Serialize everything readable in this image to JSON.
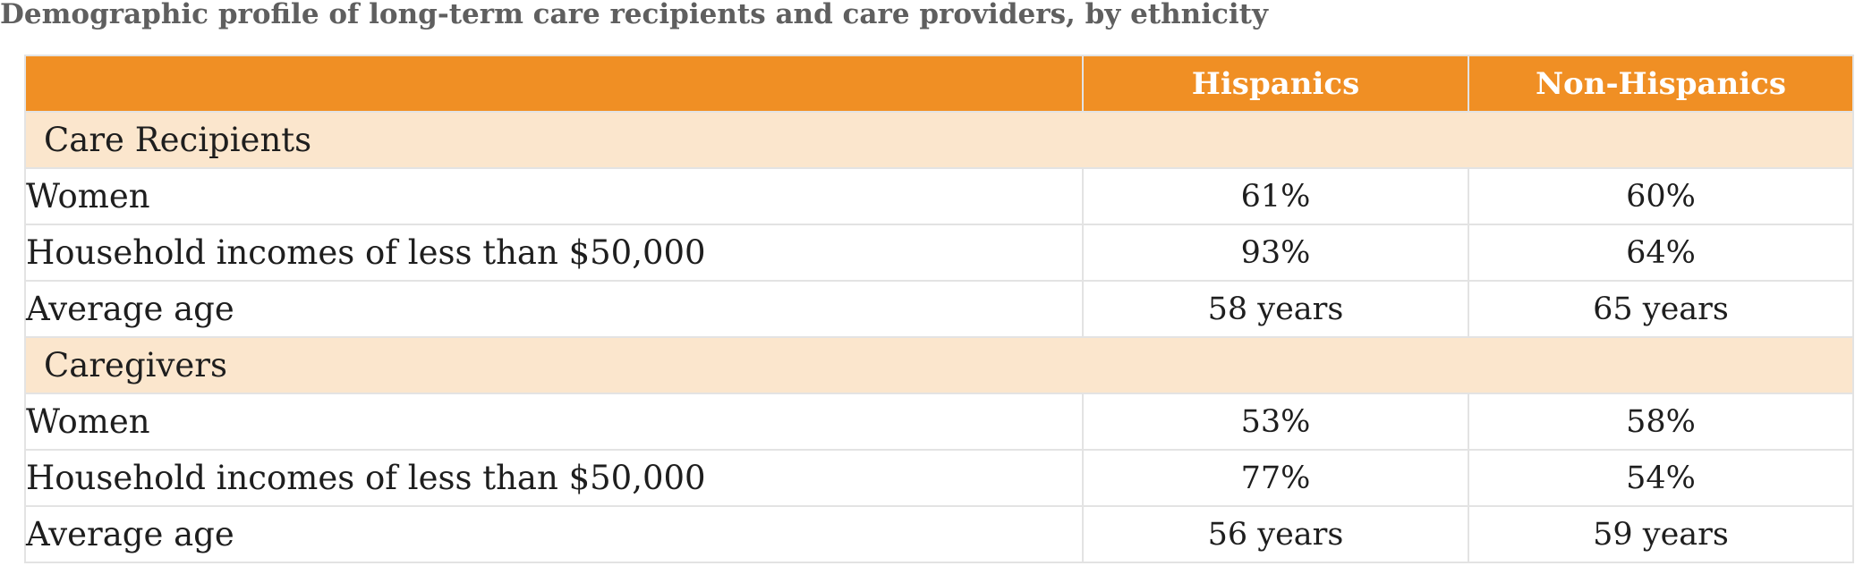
{
  "title": "Demographic profile of long-term care recipients and care providers, by ethnicity",
  "colors": {
    "header_bg": "#f08f24",
    "section_bg": "#fbe6cd",
    "title_text": "#5f5f5f"
  },
  "table": {
    "columns": [
      "",
      "Hispanics",
      "Non-Hispanics"
    ],
    "sections": [
      {
        "label": "Care Recipients",
        "rows": [
          {
            "label": "Women",
            "hispanics": "61%",
            "non_hispanics": "60%"
          },
          {
            "label": "Household incomes of less than $50,000",
            "hispanics": "93%",
            "non_hispanics": "64%"
          },
          {
            "label": "Average age",
            "hispanics": "58 years",
            "non_hispanics": "65 years"
          }
        ]
      },
      {
        "label": "Caregivers",
        "rows": [
          {
            "label": "Women",
            "hispanics": "53%",
            "non_hispanics": "58%"
          },
          {
            "label": "Household incomes of less than $50,000",
            "hispanics": "77%",
            "non_hispanics": "54%"
          },
          {
            "label": "Average age",
            "hispanics": "56 years",
            "non_hispanics": "59 years"
          }
        ]
      }
    ]
  },
  "chart_data": {
    "type": "table",
    "title": "Demographic profile of long-term care recipients and care providers, by ethnicity",
    "columns": [
      "",
      "Hispanics",
      "Non-Hispanics"
    ],
    "rows": [
      [
        "Care Recipients",
        "",
        ""
      ],
      [
        "Women",
        "61%",
        "60%"
      ],
      [
        "Household incomes of less than $50,000",
        "93%",
        "64%"
      ],
      [
        "Average age",
        "58 years",
        "65 years"
      ],
      [
        "Caregivers",
        "",
        ""
      ],
      [
        "Women",
        "53%",
        "58%"
      ],
      [
        "Household incomes of less than $50,000",
        "77%",
        "54%"
      ],
      [
        "Average age",
        "56 years",
        "59 years"
      ]
    ]
  }
}
